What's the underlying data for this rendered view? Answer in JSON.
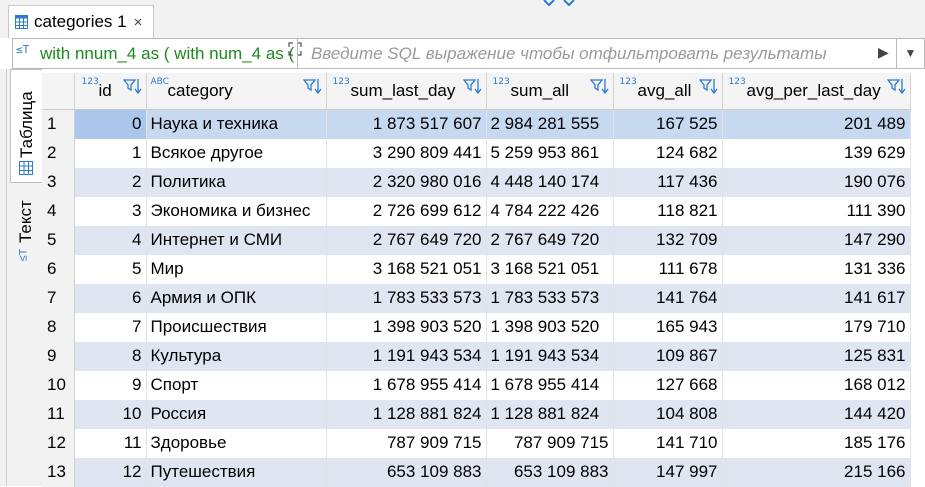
{
  "tab": {
    "label": "categories 1",
    "icon": "table-icon",
    "close": "×"
  },
  "filter": {
    "query": "with nnum_4 as ( with num_4 as ( with num_3 as",
    "placeholder": "Введите SQL выражение чтобы отфильтровать результаты"
  },
  "side_tabs": {
    "table_label": "Таблица",
    "text_label": "Текст"
  },
  "columns": [
    {
      "key": "id",
      "label": "id",
      "type_badge": "123"
    },
    {
      "key": "category",
      "label": "category",
      "type_badge": "ABC"
    },
    {
      "key": "sum_last_day",
      "label": "sum_last_day",
      "type_badge": "123"
    },
    {
      "key": "sum_all",
      "label": "sum_all",
      "type_badge": "123"
    },
    {
      "key": "avg_all",
      "label": "avg_all",
      "type_badge": "123"
    },
    {
      "key": "avg_per_last_day",
      "label": "avg_per_last_day",
      "type_badge": "123"
    }
  ],
  "rows": [
    {
      "n": "1",
      "id": "0",
      "category": "Наука и техника",
      "sum_last_day": "1 873 517 607",
      "sum_all": "2 984 281 555",
      "avg_all": "167 525",
      "avg_per_last_day": "201 489"
    },
    {
      "n": "2",
      "id": "1",
      "category": "Всякое другое",
      "sum_last_day": "3 290 809 441",
      "sum_all": "5 259 953 861",
      "avg_all": "124 682",
      "avg_per_last_day": "139 629"
    },
    {
      "n": "3",
      "id": "2",
      "category": "Политика",
      "sum_last_day": "2 320 980 016",
      "sum_all": "4 448 140 174",
      "avg_all": "117 436",
      "avg_per_last_day": "190 076"
    },
    {
      "n": "4",
      "id": "3",
      "category": "Экономика и бизнес",
      "sum_last_day": "2 726 699 612",
      "sum_all": "4 784 222 426",
      "avg_all": "118 821",
      "avg_per_last_day": "111 390"
    },
    {
      "n": "5",
      "id": "4",
      "category": "Интернет и СМИ",
      "sum_last_day": "2 767 649 720",
      "sum_all": "2 767 649 720",
      "avg_all": "132 709",
      "avg_per_last_day": "147 290"
    },
    {
      "n": "6",
      "id": "5",
      "category": "Мир",
      "sum_last_day": "3 168 521 051",
      "sum_all": "3 168 521 051",
      "avg_all": "111 678",
      "avg_per_last_day": "131 336"
    },
    {
      "n": "7",
      "id": "6",
      "category": "Армия и ОПК",
      "sum_last_day": "1 783 533 573",
      "sum_all": "1 783 533 573",
      "avg_all": "141 764",
      "avg_per_last_day": "141 617"
    },
    {
      "n": "8",
      "id": "7",
      "category": "Происшествия",
      "sum_last_day": "1 398 903 520",
      "sum_all": "1 398 903 520",
      "avg_all": "165 943",
      "avg_per_last_day": "179 710"
    },
    {
      "n": "9",
      "id": "8",
      "category": "Культура",
      "sum_last_day": "1 191 943 534",
      "sum_all": "1 191 943 534",
      "avg_all": "109 867",
      "avg_per_last_day": "125 831"
    },
    {
      "n": "10",
      "id": "9",
      "category": "Спорт",
      "sum_last_day": "1 678 955 414",
      "sum_all": "1 678 955 414",
      "avg_all": "127 668",
      "avg_per_last_day": "168 012"
    },
    {
      "n": "11",
      "id": "10",
      "category": "Россия",
      "sum_last_day": "1 128 881 824",
      "sum_all": "1 128 881 824",
      "avg_all": "104 808",
      "avg_per_last_day": "144 420"
    },
    {
      "n": "12",
      "id": "11",
      "category": "Здоровье",
      "sum_last_day": "787 909 715",
      "sum_all": "787 909 715",
      "avg_all": "141 710",
      "avg_per_last_day": "185 176"
    },
    {
      "n": "13",
      "id": "12",
      "category": "Путешествия",
      "sum_last_day": "653 109 883",
      "sum_all": "653 109 883",
      "avg_all": "147 997",
      "avg_per_last_day": "215 166"
    }
  ],
  "colors": {
    "accent": "#2b7bd3",
    "query_text": "#1c8a1c",
    "row_stripe": "#dfe6f2",
    "row_selected": "#c7d9f0"
  }
}
